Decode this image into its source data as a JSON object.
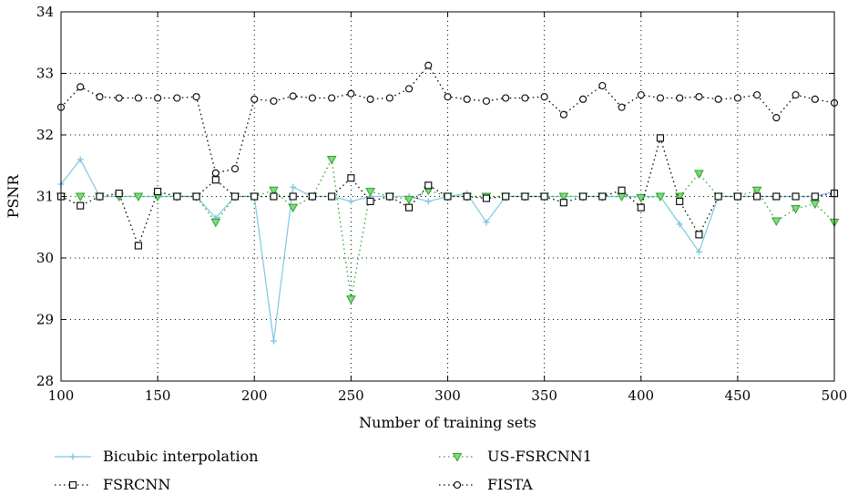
{
  "chart_data": {
    "type": "line",
    "title": "",
    "xlabel": "Number of training sets",
    "ylabel": "PSNR",
    "xlim": [
      100,
      500
    ],
    "ylim": [
      28,
      34
    ],
    "xticks": [
      100,
      150,
      200,
      250,
      300,
      350,
      400,
      450,
      500
    ],
    "yticks": [
      28,
      29,
      30,
      31,
      32,
      33,
      34
    ],
    "grid": true,
    "legend_position": "bottom",
    "x": [
      100,
      110,
      120,
      130,
      140,
      150,
      160,
      170,
      180,
      190,
      200,
      210,
      220,
      230,
      240,
      250,
      260,
      270,
      280,
      290,
      300,
      310,
      320,
      330,
      340,
      350,
      360,
      370,
      380,
      390,
      400,
      410,
      420,
      430,
      440,
      450,
      460,
      470,
      480,
      490,
      500
    ],
    "series": [
      {
        "name": "Bicubic interpolation",
        "color": "#7ec8e3",
        "marker": "plus",
        "dash": "solid",
        "values": [
          31.2,
          31.6,
          31.0,
          31.0,
          31.0,
          31.0,
          31.0,
          31.0,
          30.65,
          31.0,
          31.0,
          28.65,
          31.15,
          31.0,
          31.0,
          30.92,
          31.0,
          31.0,
          31.0,
          30.92,
          31.0,
          31.05,
          30.58,
          31.0,
          31.0,
          31.0,
          31.0,
          31.0,
          31.0,
          31.0,
          31.0,
          31.0,
          30.55,
          30.1,
          31.0,
          31.0,
          31.0,
          31.0,
          31.0,
          31.0,
          31.08
        ]
      },
      {
        "name": "US-FSRCNN1",
        "color": "#2ca02c",
        "fill": "#7fdc7f",
        "marker": "triangle-down",
        "dash": "dotted",
        "values": [
          31.0,
          31.0,
          31.0,
          31.0,
          31.0,
          31.0,
          31.0,
          31.0,
          30.58,
          31.0,
          31.0,
          31.1,
          30.82,
          31.0,
          31.6,
          29.33,
          31.08,
          31.0,
          30.95,
          31.1,
          31.0,
          31.0,
          31.0,
          31.0,
          31.0,
          31.0,
          31.0,
          31.0,
          31.0,
          31.0,
          30.98,
          31.0,
          31.0,
          31.37,
          31.0,
          31.0,
          31.1,
          30.6,
          30.8,
          30.88,
          30.58
        ]
      },
      {
        "name": "FSRCNN",
        "color": "#000000",
        "marker": "square",
        "dash": "dotted",
        "values": [
          31.0,
          30.85,
          31.0,
          31.05,
          30.2,
          31.08,
          31.0,
          31.0,
          31.27,
          31.0,
          31.0,
          31.0,
          31.0,
          31.0,
          31.0,
          31.3,
          30.92,
          31.0,
          30.82,
          31.18,
          31.0,
          31.0,
          30.97,
          31.0,
          31.0,
          31.0,
          30.9,
          31.0,
          31.0,
          31.1,
          30.82,
          31.95,
          30.92,
          30.38,
          31.0,
          31.0,
          31.0,
          31.0,
          31.0,
          31.0,
          31.05
        ]
      },
      {
        "name": "FISTA",
        "color": "#000000",
        "marker": "circle",
        "dash": "dotted",
        "values": [
          32.45,
          32.78,
          32.62,
          32.6,
          32.6,
          32.6,
          32.6,
          32.62,
          31.38,
          31.45,
          32.58,
          32.55,
          32.63,
          32.6,
          32.6,
          32.67,
          32.58,
          32.6,
          32.75,
          33.13,
          32.62,
          32.58,
          32.55,
          32.6,
          32.6,
          32.62,
          32.33,
          32.58,
          32.8,
          32.45,
          32.65,
          32.6,
          32.6,
          32.62,
          32.58,
          32.6,
          32.65,
          32.28,
          32.65,
          32.58,
          32.52
        ]
      }
    ]
  }
}
